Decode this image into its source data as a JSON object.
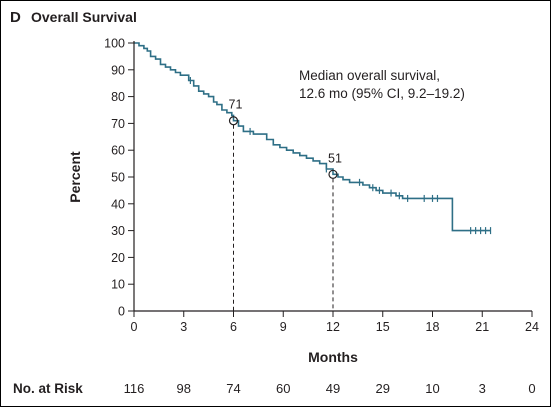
{
  "panel": {
    "letter": "D",
    "title": "Overall Survival"
  },
  "chart_data": {
    "type": "line",
    "title": "Overall Survival",
    "xlabel": "Months",
    "ylabel": "Percent",
    "xlim": [
      0,
      24
    ],
    "ylim": [
      0,
      100
    ],
    "x_ticks": [
      0,
      3,
      6,
      9,
      12,
      15,
      18,
      21,
      24
    ],
    "y_ticks": [
      0,
      10,
      20,
      30,
      40,
      50,
      60,
      70,
      80,
      90,
      100
    ],
    "grid": false,
    "colors": {
      "curve": "#2e6f86",
      "axis": "#231f20",
      "marker": "#231f20"
    },
    "series": [
      {
        "x": [
          0,
          0.3,
          0.6,
          0.8,
          1.0,
          1.3,
          1.6,
          1.9,
          2.2,
          2.5,
          2.8,
          3.3,
          3.6,
          3.9,
          4.2,
          4.5,
          4.8,
          5.0,
          5.3,
          5.6,
          5.9,
          6.0,
          6.3,
          6.6,
          6.9,
          7.2,
          7.5,
          8.0,
          8.4,
          8.8,
          9.2,
          9.6,
          10.0,
          10.4,
          10.8,
          11.2,
          11.6,
          12.0,
          12.3,
          12.6,
          13.0,
          13.4,
          13.8,
          14.2,
          14.6,
          15.0,
          15.3,
          15.8,
          16.2,
          16.6,
          17.0,
          17.5,
          18.0,
          18.5,
          18.9,
          19.2,
          19.5,
          20.0,
          20.5,
          21.0,
          21.5
        ],
        "y": [
          100,
          99,
          98,
          97,
          95,
          94,
          92,
          91,
          90,
          89,
          88,
          86,
          84,
          82,
          81,
          80,
          78,
          77,
          75,
          74,
          73,
          71,
          69,
          67,
          67,
          66,
          66,
          64,
          62,
          61,
          60,
          59,
          58,
          57,
          56,
          55,
          53,
          51,
          50,
          49,
          48,
          48,
          47,
          46,
          45,
          44,
          44,
          43,
          42,
          42,
          42,
          42,
          42,
          42,
          42,
          30,
          30,
          30,
          30,
          30,
          30
        ],
        "censor_x": [
          3.4,
          7.0,
          11.6,
          13.6,
          14.4,
          14.8,
          15.5,
          16.0,
          16.5,
          17.5,
          18.0,
          18.3,
          20.3,
          20.6,
          20.9,
          21.2,
          21.5
        ]
      }
    ],
    "median_markers": [
      {
        "x": 6,
        "y": 71,
        "label": "71"
      },
      {
        "x": 12,
        "y": 51,
        "label": "51"
      }
    ],
    "annotation": {
      "line1": "Median overall survival,",
      "line2": "12.6 mo (95% CI, 9.2–19.2)"
    }
  },
  "risk_table": {
    "title": "No. at Risk",
    "months": [
      0,
      3,
      6,
      9,
      12,
      15,
      18,
      21,
      24
    ],
    "values": [
      "116",
      "98",
      "74",
      "60",
      "49",
      "29",
      "10",
      "3",
      "0"
    ]
  }
}
